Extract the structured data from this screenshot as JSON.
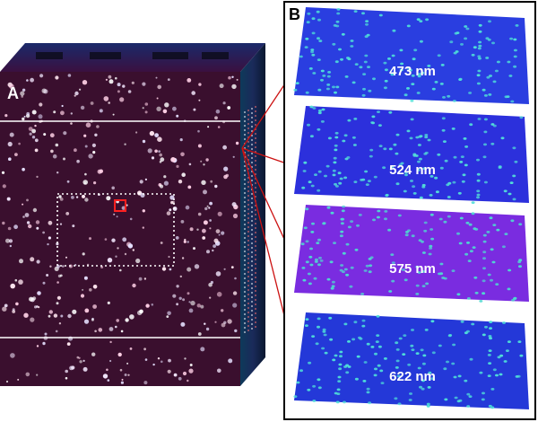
{
  "panels": {
    "a_label": "A",
    "b_label": "B"
  },
  "spectral_slices": [
    {
      "wavelength_label": "473 nm",
      "bg_color": "#2a3ee0",
      "spot_color": "#4fe0d8"
    },
    {
      "wavelength_label": "524 nm",
      "bg_color": "#2c30dc",
      "spot_color": "#52ddd8"
    },
    {
      "wavelength_label": "575 nm",
      "bg_color": "#7a2ce0",
      "spot_color": "#4fd8d0"
    },
    {
      "wavelength_label": "622 nm",
      "bg_color": "#2438d8",
      "spot_color": "#4fe0d8"
    }
  ],
  "colors": {
    "cube_face": "#3a0f2e",
    "cube_side": "#1b2a4a",
    "spot": "#f4e9ff",
    "roi_box": "#ffffff",
    "selected_pixel": "#ff2020",
    "arrow": "#cc1111",
    "frame": "#000000"
  }
}
